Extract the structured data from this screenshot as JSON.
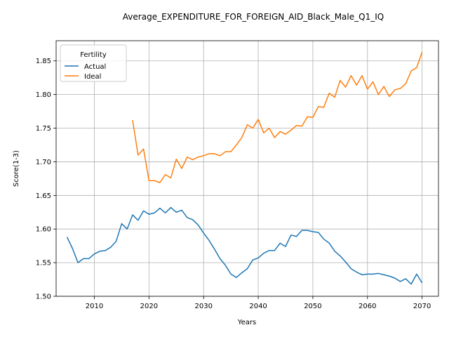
{
  "chart_data": {
    "type": "line",
    "title": "Average_EXPENDITURE_FOR_FOREIGN_AID_Black_Male_Q1_IQ",
    "xlabel": "Years",
    "ylabel": "Score(1-3)",
    "xlim": [
      2003,
      2073
    ],
    "ylim": [
      1.5,
      1.88
    ],
    "grid": true,
    "legend": {
      "title": "Fertility",
      "placement": "upper-left"
    },
    "xticks": [
      2010,
      2020,
      2030,
      2040,
      2050,
      2060,
      2070
    ],
    "xtick_labels": [
      "2010",
      "2020",
      "2030",
      "2040",
      "2050",
      "2060",
      "2070"
    ],
    "yticks": [
      1.5,
      1.55,
      1.6,
      1.65,
      1.7,
      1.75,
      1.8,
      1.85
    ],
    "ytick_labels": [
      "1.50",
      "1.55",
      "1.60",
      "1.65",
      "1.70",
      "1.75",
      "1.80",
      "1.85"
    ],
    "series": [
      {
        "name": "Actual",
        "color": "#1f77b4",
        "x": [
          2005,
          2006,
          2007,
          2008,
          2009,
          2010,
          2011,
          2012,
          2013,
          2014,
          2015,
          2016,
          2017,
          2018,
          2019,
          2020,
          2021,
          2022,
          2023,
          2024,
          2025,
          2026,
          2027,
          2028,
          2029,
          2030,
          2031,
          2032,
          2033,
          2034,
          2035,
          2036,
          2037,
          2038,
          2039,
          2040,
          2041,
          2042,
          2043,
          2044,
          2045,
          2046,
          2047,
          2048,
          2049,
          2050,
          2051,
          2052,
          2053,
          2054,
          2055,
          2056,
          2057,
          2058,
          2059,
          2060,
          2061,
          2062,
          2063,
          2064,
          2065,
          2066,
          2067,
          2068,
          2069,
          2070
        ],
        "values": [
          1.588,
          1.571,
          1.55,
          1.556,
          1.556,
          1.563,
          1.567,
          1.568,
          1.573,
          1.582,
          1.608,
          1.6,
          1.621,
          1.613,
          1.627,
          1.622,
          1.624,
          1.631,
          1.624,
          1.632,
          1.625,
          1.628,
          1.617,
          1.614,
          1.606,
          1.594,
          1.583,
          1.57,
          1.556,
          1.546,
          1.533,
          1.528,
          1.535,
          1.541,
          1.554,
          1.557,
          1.564,
          1.568,
          1.568,
          1.579,
          1.574,
          1.591,
          1.589,
          1.598,
          1.598,
          1.596,
          1.595,
          1.585,
          1.579,
          1.567,
          1.56,
          1.551,
          1.541,
          1.536,
          1.532,
          1.533,
          1.533,
          1.534,
          1.532,
          1.53,
          1.527,
          1.522,
          1.526,
          1.518,
          1.533,
          1.52
        ]
      },
      {
        "name": "Ideal",
        "color": "#ff7f0e",
        "x": [
          2017,
          2018,
          2019,
          2020,
          2021,
          2022,
          2023,
          2024,
          2025,
          2026,
          2027,
          2028,
          2029,
          2030,
          2031,
          2032,
          2033,
          2034,
          2035,
          2036,
          2037,
          2038,
          2039,
          2040,
          2041,
          2042,
          2043,
          2044,
          2045,
          2046,
          2047,
          2048,
          2049,
          2050,
          2051,
          2052,
          2053,
          2054,
          2055,
          2056,
          2057,
          2058,
          2059,
          2060,
          2061,
          2062,
          2063,
          2064,
          2065,
          2066,
          2067,
          2068,
          2069,
          2070
        ],
        "values": [
          1.762,
          1.71,
          1.719,
          1.672,
          1.672,
          1.669,
          1.681,
          1.676,
          1.704,
          1.69,
          1.707,
          1.703,
          1.707,
          1.709,
          1.712,
          1.712,
          1.709,
          1.715,
          1.715,
          1.725,
          1.736,
          1.755,
          1.75,
          1.763,
          1.743,
          1.75,
          1.736,
          1.745,
          1.741,
          1.747,
          1.754,
          1.753,
          1.767,
          1.766,
          1.782,
          1.781,
          1.802,
          1.796,
          1.821,
          1.811,
          1.828,
          1.814,
          1.828,
          1.808,
          1.819,
          1.8,
          1.812,
          1.797,
          1.807,
          1.809,
          1.816,
          1.835,
          1.84,
          1.863
        ]
      }
    ]
  }
}
